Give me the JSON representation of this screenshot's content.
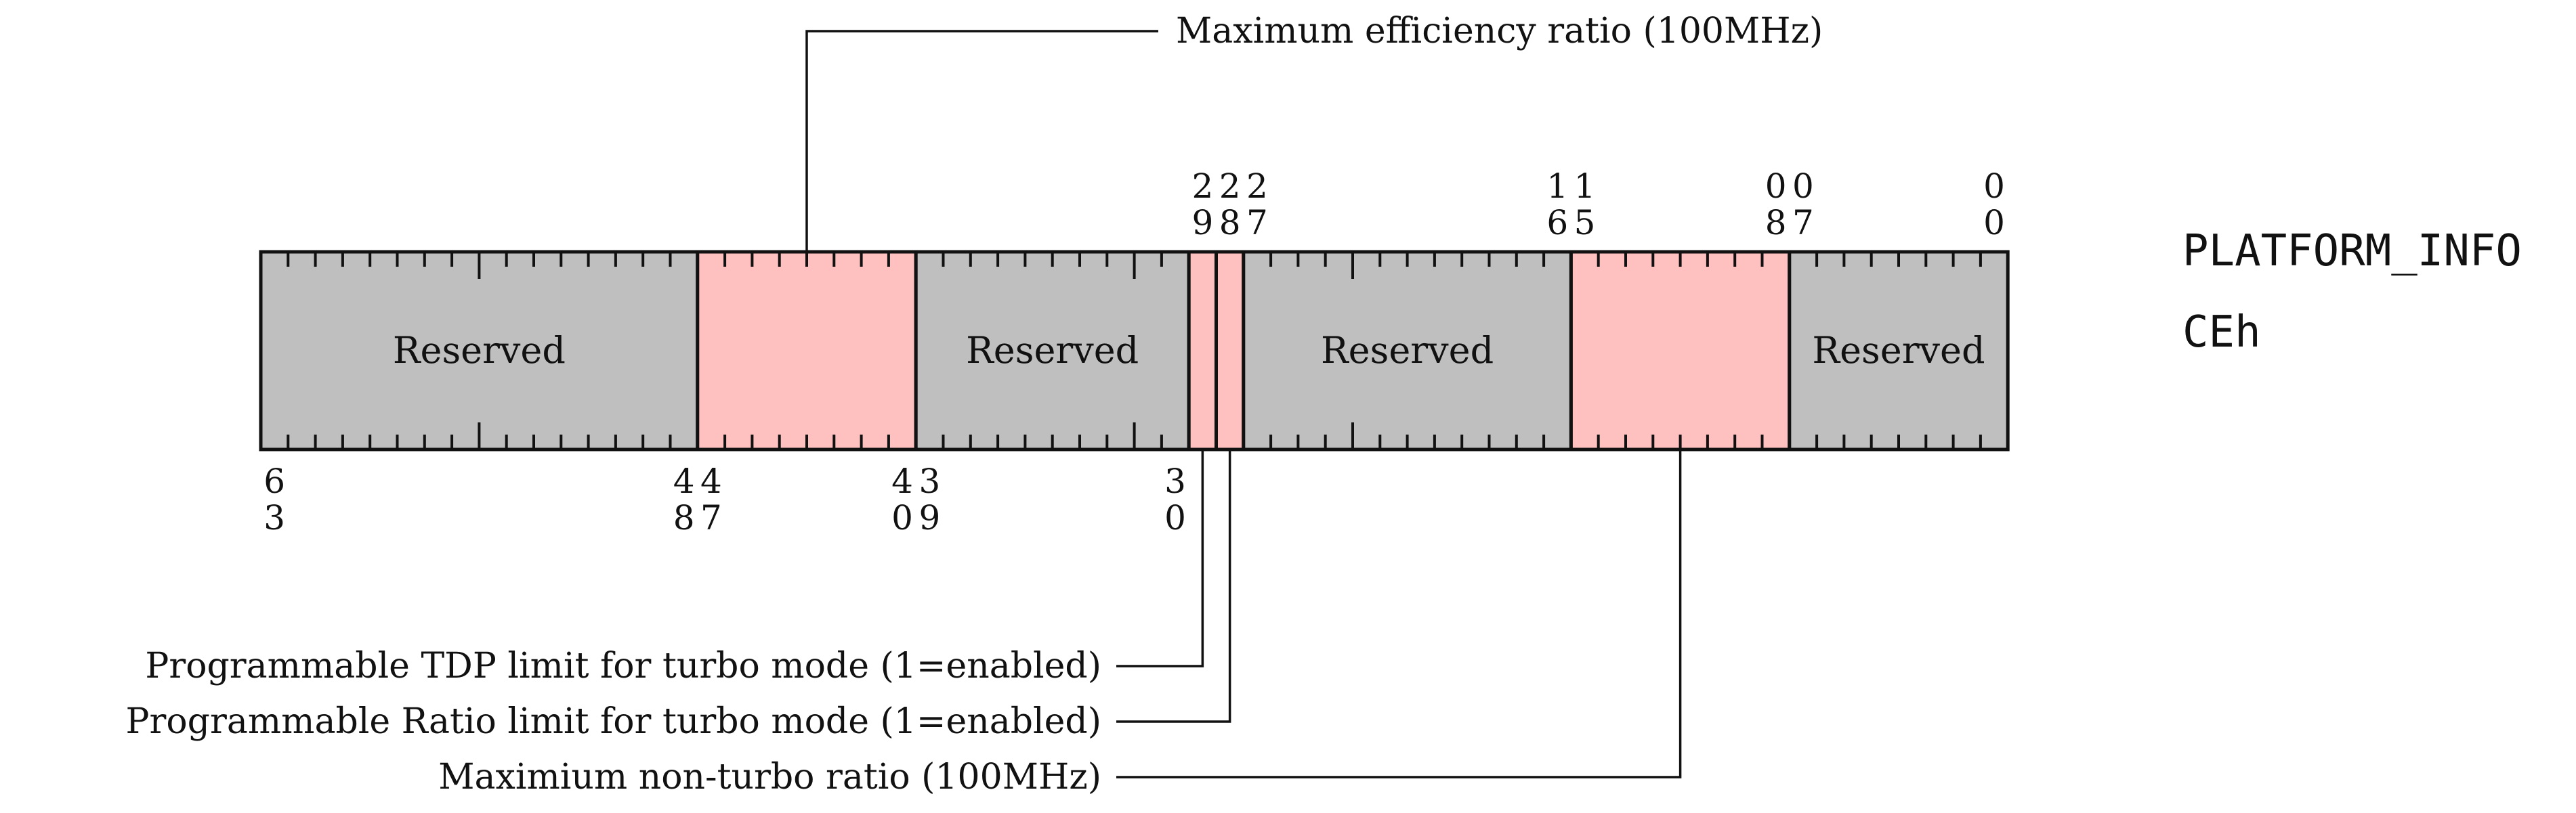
{
  "register": {
    "name": "PLATFORM_INFO",
    "address": "CEh",
    "width_bits": 64
  },
  "colors": {
    "reserved_fill": "#bfbfbf",
    "field_fill": "#ffc0c0",
    "stroke": "#111111"
  },
  "fields": [
    {
      "id": "reserved-63-48",
      "msb": 63,
      "lsb": 48,
      "label": "Reserved",
      "kind": "reserved"
    },
    {
      "id": "max-efficiency-ratio",
      "msb": 47,
      "lsb": 40,
      "label": "",
      "kind": "field"
    },
    {
      "id": "reserved-39-30",
      "msb": 39,
      "lsb": 30,
      "label": "Reserved",
      "kind": "reserved"
    },
    {
      "id": "programmable-tdp-limit",
      "msb": 29,
      "lsb": 29,
      "label": "",
      "kind": "field"
    },
    {
      "id": "programmable-ratio-limit",
      "msb": 28,
      "lsb": 28,
      "label": "",
      "kind": "field"
    },
    {
      "id": "reserved-27-16",
      "msb": 27,
      "lsb": 16,
      "label": "Reserved",
      "kind": "reserved"
    },
    {
      "id": "max-non-turbo-ratio",
      "msb": 15,
      "lsb": 8,
      "label": "",
      "kind": "field"
    },
    {
      "id": "reserved-7-0",
      "msb": 7,
      "lsb": 0,
      "label": "Reserved",
      "kind": "reserved"
    }
  ],
  "bit_labels_top": [
    {
      "bit": 29,
      "text": "29"
    },
    {
      "bit": 28,
      "text": "28"
    },
    {
      "bit": 27,
      "text": "27"
    },
    {
      "bit": 16,
      "text": "16"
    },
    {
      "bit": 15,
      "text": "15"
    },
    {
      "bit": 8,
      "text": "08"
    },
    {
      "bit": 7,
      "text": "07"
    },
    {
      "bit": 0,
      "text": "00"
    }
  ],
  "bit_labels_bottom": [
    {
      "bit": 63,
      "text": "63"
    },
    {
      "bit": 48,
      "text": "48"
    },
    {
      "bit": 47,
      "text": "47"
    },
    {
      "bit": 40,
      "text": "40"
    },
    {
      "bit": 39,
      "text": "39"
    },
    {
      "bit": 30,
      "text": "30"
    }
  ],
  "annotations": [
    {
      "field": "max-efficiency-ratio",
      "side": "top",
      "text": "Maximum efficiency ratio (100MHz)"
    },
    {
      "field": "programmable-tdp-limit",
      "side": "bottom",
      "text": "Programmable TDP limit for turbo mode (1=enabled)"
    },
    {
      "field": "programmable-ratio-limit",
      "side": "bottom",
      "text": "Programmable Ratio limit for turbo mode (1=enabled)"
    },
    {
      "field": "max-non-turbo-ratio",
      "side": "bottom",
      "text": "Maximium non-turbo ratio (100MHz)"
    }
  ]
}
